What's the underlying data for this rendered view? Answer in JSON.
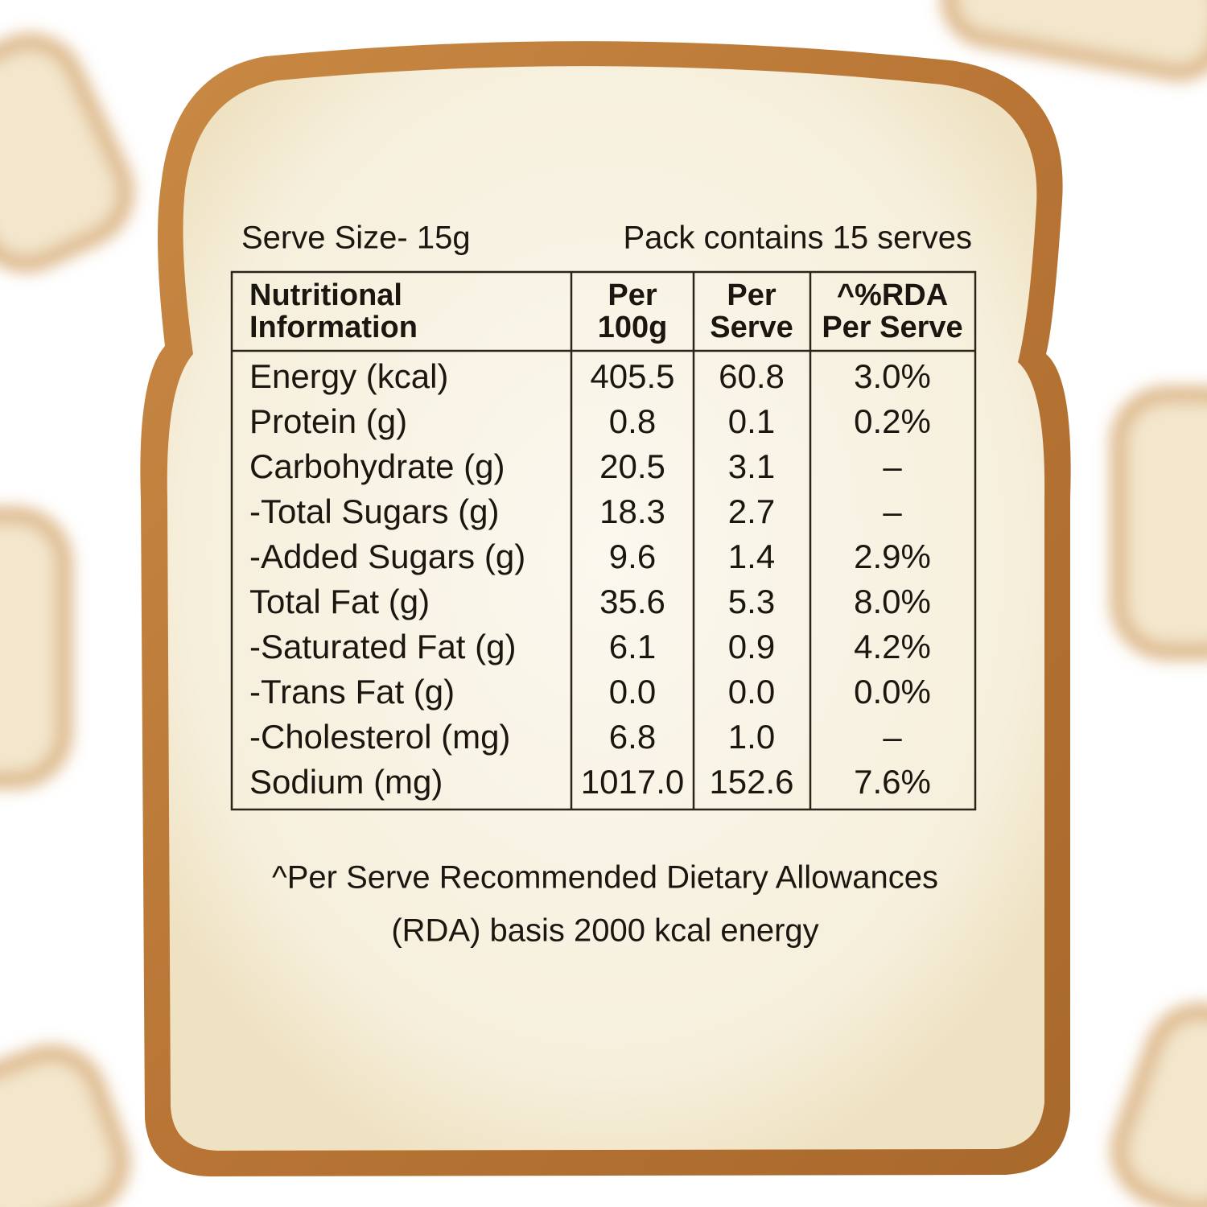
{
  "serve_size": "Serve Size- 15g",
  "pack_info": "Pack contains 15 serves",
  "table": {
    "header": [
      [
        "Nutritional",
        "Information"
      ],
      [
        "Per",
        "100g"
      ],
      [
        "Per",
        "Serve"
      ],
      [
        "^%RDA",
        "Per Serve"
      ]
    ],
    "rows": [
      [
        "Energy (kcal)",
        "405.5",
        "60.8",
        "3.0%"
      ],
      [
        "Protein (g)",
        "0.8",
        "0.1",
        "0.2%"
      ],
      [
        "Carbohydrate (g)",
        "20.5",
        "3.1",
        "–"
      ],
      [
        "-Total Sugars (g)",
        "18.3",
        "2.7",
        "–"
      ],
      [
        "-Added Sugars (g)",
        "9.6",
        "1.4",
        "2.9%"
      ],
      [
        "Total Fat (g)",
        "35.6",
        "5.3",
        "8.0%"
      ],
      [
        "-Saturated Fat (g)",
        "6.1",
        "0.9",
        "4.2%"
      ],
      [
        "-Trans Fat (g)",
        "0.0",
        "0.0",
        "0.0%"
      ],
      [
        "-Cholesterol (mg)",
        "6.8",
        "1.0",
        "–"
      ],
      [
        "Sodium (mg)",
        "1017.0",
        "152.6",
        "7.6%"
      ]
    ]
  },
  "footnote": [
    "^Per Serve Recommended Dietary Allowances",
    "(RDA) basis 2000 kcal energy"
  ]
}
